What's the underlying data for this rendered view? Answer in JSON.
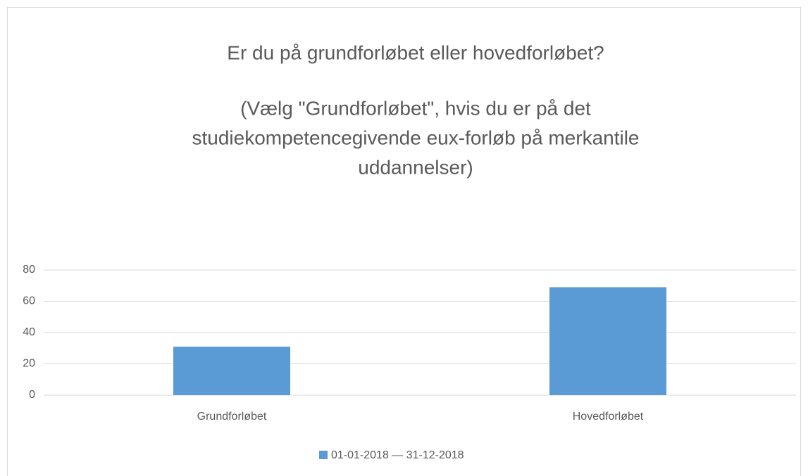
{
  "chart_data": {
    "type": "bar",
    "title": "Er du på grundforløbet eller hovedforløbet?",
    "subtitle": [
      "(Vælg \"Grundforløbet\", hvis du er på det",
      "studiekompetencegivende eux-forløb på merkantile",
      "uddannelser)"
    ],
    "categories": [
      "Grundforløbet",
      "Hovedforløbet"
    ],
    "series": [
      {
        "name": "01-01-2018 — 31-12-2018",
        "color": "#5b9bd5",
        "values": [
          31,
          69
        ]
      }
    ],
    "ylim": [
      0,
      80
    ],
    "yticks": [
      0,
      20,
      40,
      60,
      80
    ],
    "grid": true,
    "legend": "bottom"
  }
}
